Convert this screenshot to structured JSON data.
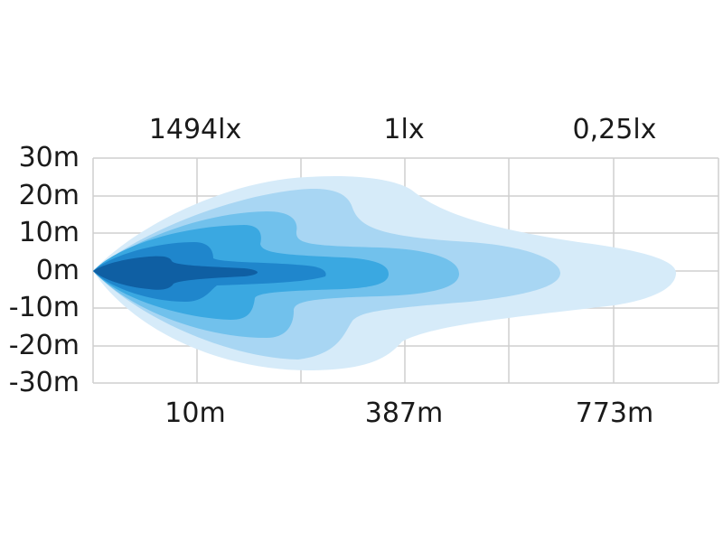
{
  "chart_data": {
    "type": "area",
    "lux_labels": [
      "1494lx",
      "1lx",
      "0,25lx"
    ],
    "distance_labels": [
      "10m",
      "387m",
      "773m"
    ],
    "y_tick_labels": [
      "30m",
      "20m",
      "10m",
      "0m",
      "-10m",
      "-20m",
      "-30m"
    ],
    "ylim": [
      -30,
      30
    ],
    "grid": true,
    "series": [
      {
        "color": "#d6ebf9"
      },
      {
        "color": "#a8d6f3"
      },
      {
        "color": "#71c1ec"
      },
      {
        "color": "#3aa8e1"
      },
      {
        "color": "#1f86cc"
      },
      {
        "color": "#0f5fa3"
      }
    ]
  }
}
